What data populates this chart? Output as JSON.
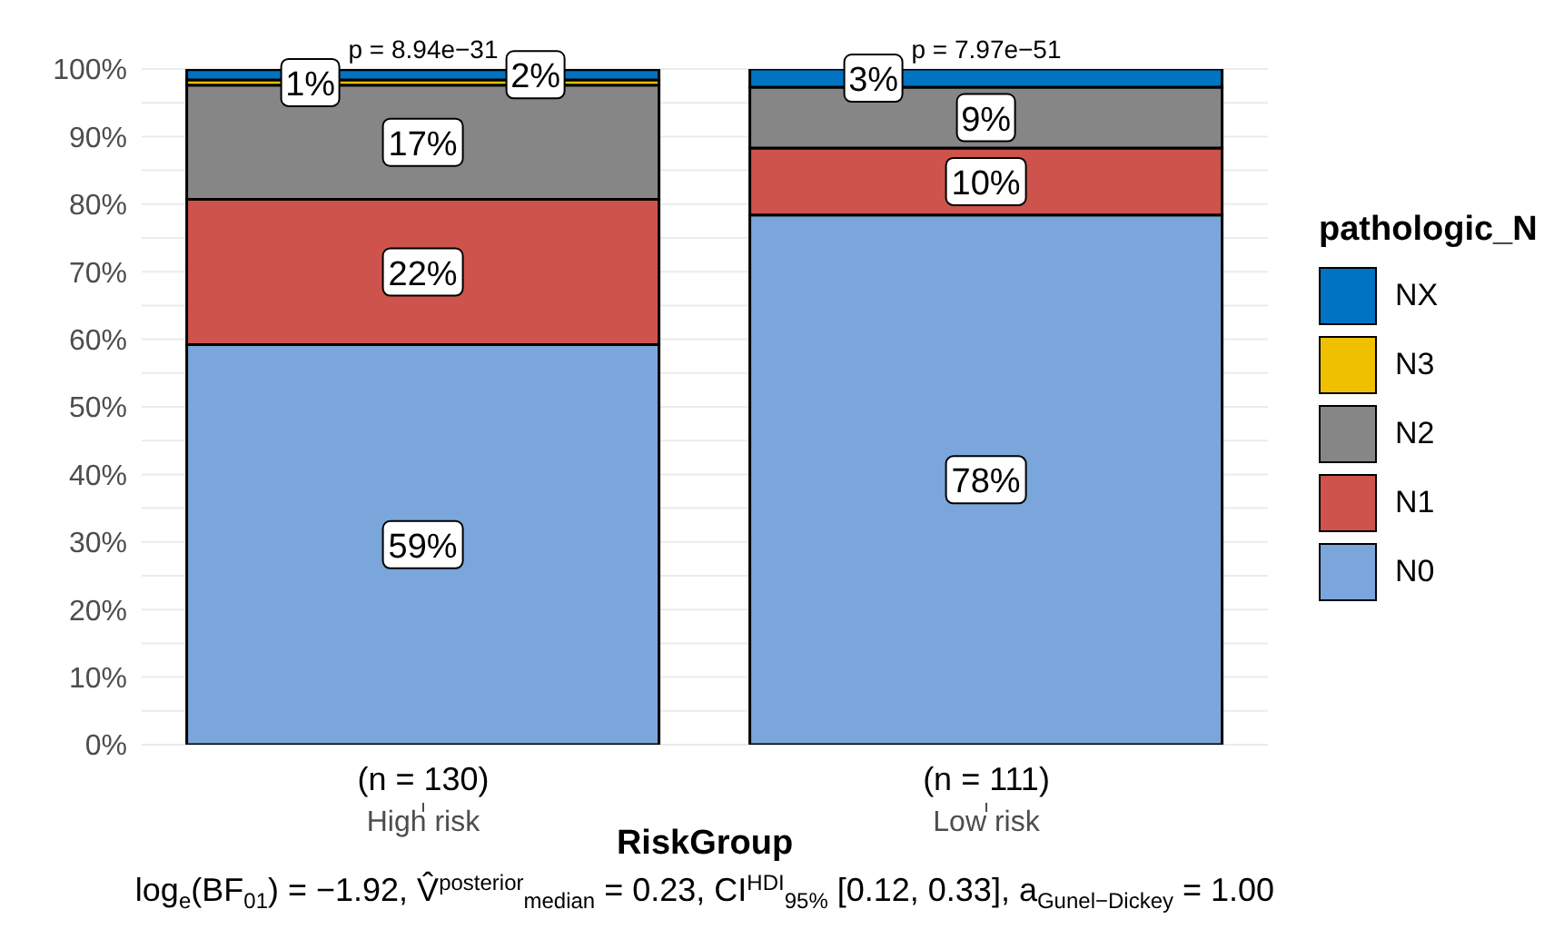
{
  "chart_data": {
    "type": "bar",
    "stacked": true,
    "xlabel": "RiskGroup",
    "legend_title": "pathologic_N",
    "legend": "right",
    "grid": "y",
    "categories": [
      "High risk",
      "Low risk"
    ],
    "series": [
      {
        "name": "N0",
        "color": "#7aa6dc",
        "values": [
          59.2,
          78.4
        ],
        "value_labels": [
          "59%",
          "78%"
        ]
      },
      {
        "name": "N1",
        "color": "#cd534c",
        "values": [
          21.5,
          9.9
        ],
        "value_labels": [
          "22%",
          "10%"
        ]
      },
      {
        "name": "N2",
        "color": "#868686",
        "values": [
          16.9,
          9.0
        ],
        "value_labels": [
          "17%",
          "9%"
        ]
      },
      {
        "name": "N3",
        "color": "#efc000",
        "values": [
          0.8,
          0
        ],
        "value_labels": [
          "1%",
          null
        ]
      },
      {
        "name": "NX",
        "color": "#0073c2",
        "values": [
          1.5,
          2.7
        ],
        "value_labels": [
          "2%",
          "3%"
        ]
      }
    ],
    "ylim": [
      0,
      100
    ],
    "yticks": [
      {
        "value": 0,
        "label": "0%"
      },
      {
        "value": 5,
        "label": null
      },
      {
        "value": 10,
        "label": "10%"
      },
      {
        "value": 15,
        "label": null
      },
      {
        "value": 20,
        "label": "20%"
      },
      {
        "value": 25,
        "label": null
      },
      {
        "value": 30,
        "label": "30%"
      },
      {
        "value": 35,
        "label": null
      },
      {
        "value": 40,
        "label": "40%"
      },
      {
        "value": 45,
        "label": null
      },
      {
        "value": 50,
        "label": "50%"
      },
      {
        "value": 55,
        "label": null
      },
      {
        "value": 60,
        "label": "60%"
      },
      {
        "value": 65,
        "label": null
      },
      {
        "value": 70,
        "label": "70%"
      },
      {
        "value": 75,
        "label": null
      },
      {
        "value": 80,
        "label": "80%"
      },
      {
        "value": 85,
        "label": null
      },
      {
        "value": 90,
        "label": "90%"
      },
      {
        "value": 95,
        "label": null
      },
      {
        "value": 100,
        "label": "100%"
      }
    ],
    "annotations": [
      {
        "text": "p = 8.94e−31",
        "x": "High risk",
        "y": 100
      },
      {
        "text": "p = 7.97e−51",
        "x": "Low risk",
        "y": 100
      },
      {
        "text": "(n = 130)",
        "x": "High risk"
      },
      {
        "text": "(n = 111)",
        "x": "Low risk"
      },
      "log$_{e}$(BF$_{01}$) = −1.92, V̂$^{posterior}$$_{median}$ = 0.23, CI$^{HDI}$$_{95%}$ [0.12, 0.33], a$_{Gunel−Dickey}$ = 1.00"
    ]
  }
}
